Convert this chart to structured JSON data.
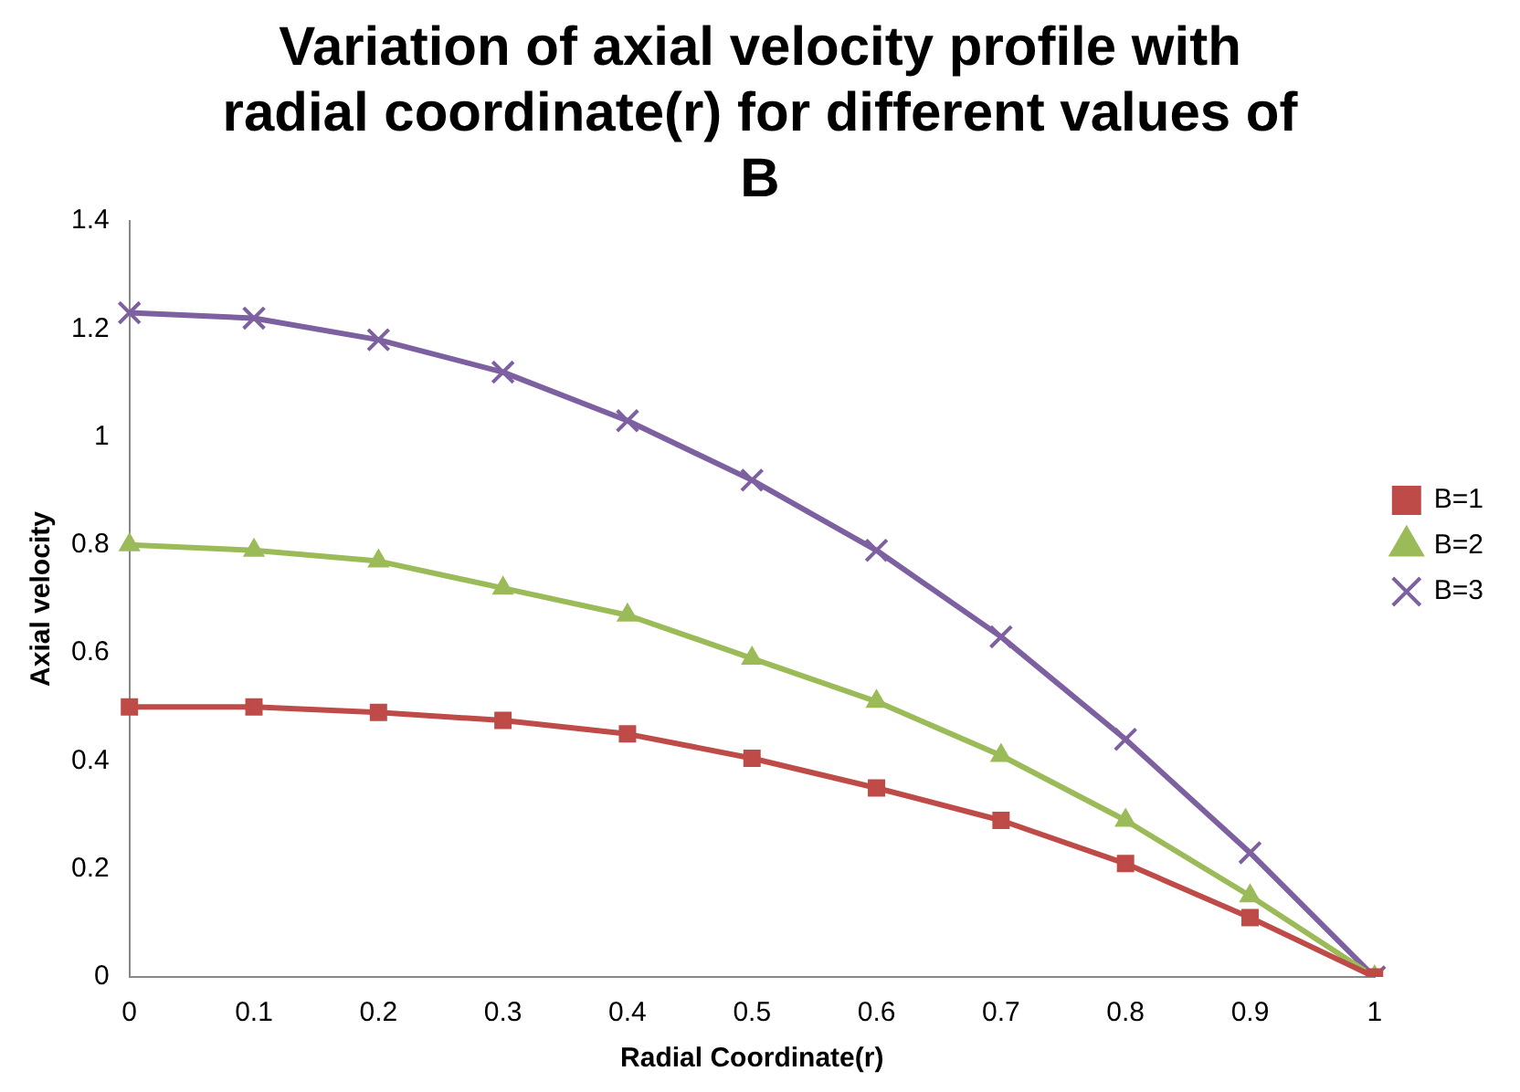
{
  "chart_data": {
    "type": "line",
    "title": "Variation of axial velocity profile with radial coordinate(r) for different values of B",
    "xlabel": "Radial Coordinate(r)",
    "ylabel": "Axial velocity",
    "categories": [
      "0",
      "0.1",
      "0.2",
      "0.3",
      "0.4",
      "0.5",
      "0.6",
      "0.7",
      "0.8",
      "0.9",
      "1"
    ],
    "series": [
      {
        "name": "B=1",
        "color": "#be4b48",
        "marker": "square",
        "values": [
          0.5,
          0.5,
          0.49,
          0.475,
          0.45,
          0.405,
          0.35,
          0.29,
          0.21,
          0.11,
          0
        ]
      },
      {
        "name": "B=2",
        "color": "#9bbb59",
        "marker": "triangle",
        "values": [
          0.8,
          0.79,
          0.77,
          0.72,
          0.67,
          0.59,
          0.51,
          0.41,
          0.29,
          0.15,
          0
        ]
      },
      {
        "name": "B=3",
        "color": "#7d60a0",
        "marker": "cross",
        "values": [
          1.23,
          1.22,
          1.18,
          1.12,
          1.03,
          0.92,
          0.79,
          0.63,
          0.44,
          0.23,
          0
        ]
      }
    ],
    "ylim": [
      0,
      1.4
    ],
    "yticks": [
      0,
      0.2,
      0.4,
      0.6,
      0.8,
      1,
      1.2,
      1.4
    ],
    "grid": false,
    "legend": "right",
    "line_style": "solid"
  }
}
